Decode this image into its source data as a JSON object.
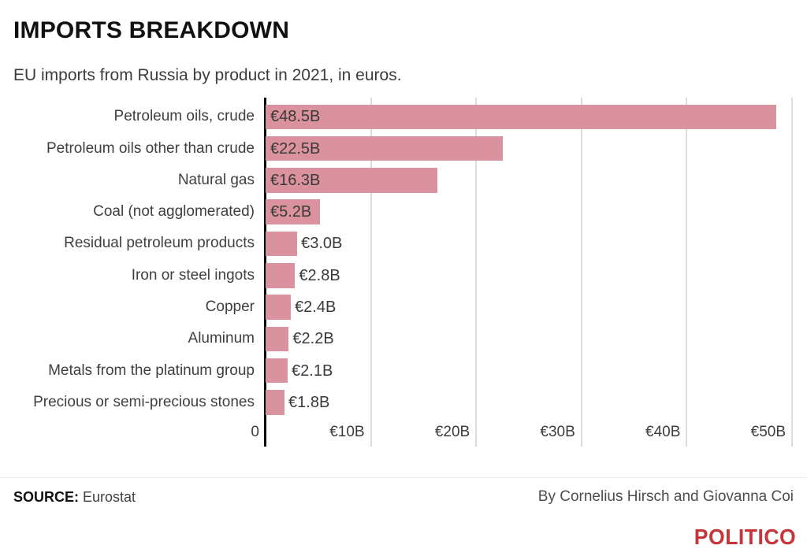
{
  "header": {
    "title": "IMPORTS BREAKDOWN",
    "subtitle": "EU imports from Russia by product in 2021, in euros."
  },
  "chart_data": {
    "type": "bar",
    "orientation": "horizontal",
    "title": "IMPORTS BREAKDOWN",
    "subtitle": "EU imports from Russia by product in 2021, in euros.",
    "categories": [
      "Petroleum oils, crude",
      "Petroleum oils other than crude",
      "Natural gas",
      "Coal (not agglomerated)",
      "Residual petroleum products",
      "Iron or steel ingots",
      "Copper",
      "Aluminum",
      "Metals from the platinum group",
      "Precious or semi-precious stones"
    ],
    "values": [
      48.5,
      22.5,
      16.3,
      5.2,
      3.0,
      2.8,
      2.4,
      2.2,
      2.1,
      1.8
    ],
    "value_labels": [
      "€48.5B",
      "€22.5B",
      "€16.3B",
      "€5.2B",
      "€3.0B",
      "€2.8B",
      "€2.4B",
      "€2.2B",
      "€2.1B",
      "€1.8B"
    ],
    "x_tick_values": [
      0,
      10,
      20,
      30,
      40,
      50
    ],
    "x_tick_labels": [
      "0",
      "€10B",
      "€20B",
      "€30B",
      "€40B",
      "€50B"
    ],
    "xlim": [
      0,
      50
    ],
    "grid": "vertical",
    "legend": "none",
    "bar_color": "#da929e",
    "gridline_color": "#dcdcdc",
    "axis_color": "#000000",
    "inside_label_threshold": 5
  },
  "footer": {
    "source_label": "SOURCE:",
    "source_value": " Eurostat",
    "byline": "By Cornelius Hirsch and Giovanna Coi",
    "logo_text": "POLITICO",
    "logo_color": "#c5353a"
  }
}
